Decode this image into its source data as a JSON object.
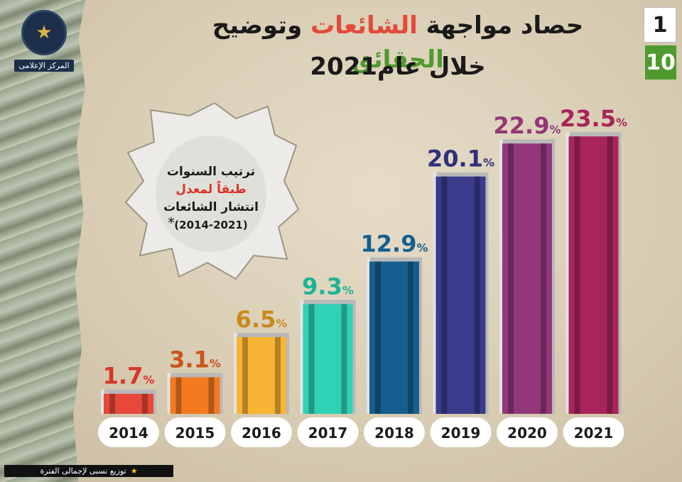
{
  "header": {
    "title_part1": "حصاد مواجهة",
    "title_rumors": "الشائعات",
    "title_part2": "وتوضيح",
    "title_facts": "الحقائق",
    "subtitle": "خلال عام2021"
  },
  "page_indicator": {
    "current": "1",
    "total": "10"
  },
  "logo": {
    "dept_label": "المركز الإعلامى"
  },
  "callout": {
    "line1": "ترتيب السنوات",
    "line2": "طبقاً لمعدل",
    "line3": "انتشار الشائعات",
    "line4": "(2014-2021)",
    "star": "*"
  },
  "footnote": {
    "star": "★",
    "text": "توزيع نسبى لإجمالى الفترة"
  },
  "chart_data": {
    "type": "bar",
    "categories": [
      "2014",
      "2015",
      "2016",
      "2017",
      "2018",
      "2019",
      "2020",
      "2021"
    ],
    "values": [
      1.7,
      3.1,
      6.5,
      9.3,
      12.9,
      20.1,
      22.9,
      23.5
    ],
    "unit": "%",
    "colors": [
      "#e8483a",
      "#f47a20",
      "#f8b534",
      "#2fd2b4",
      "#145f8f",
      "#3a3b8d",
      "#93377a",
      "#a8245a"
    ],
    "label_colors": [
      "#d9352a",
      "#c9541a",
      "#c98a1c",
      "#1db396",
      "#145f8f",
      "#2f307a",
      "#93377a",
      "#a8245a"
    ],
    "title": "",
    "xlabel": "",
    "ylabel": "",
    "ylim": [
      0,
      25
    ]
  },
  "colors": {
    "rumors_red": "#e24a3a",
    "facts_green": "#4f9a2e",
    "page_green": "#4f9a2e"
  }
}
